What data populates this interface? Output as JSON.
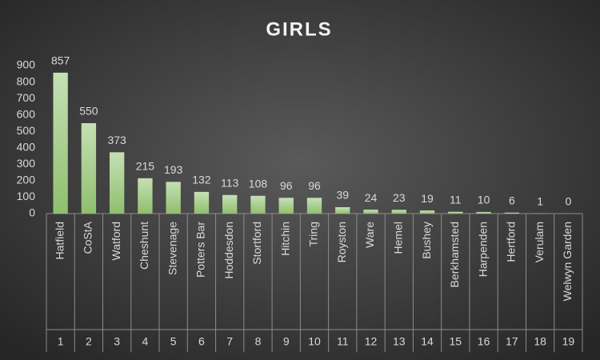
{
  "chart_data": {
    "type": "bar",
    "title": "GIRLS",
    "categories": [
      "Hatfield",
      "CoStA",
      "Watford",
      "Cheshunt",
      "Stevenage",
      "Potters Bar",
      "Hoddesdon",
      "Stortford",
      "Hitchin",
      "Tring",
      "Royston",
      "Ware",
      "Hemel",
      "Bushey",
      "Berkhamsted",
      "Harpenden",
      "Hertford",
      "Verulam",
      "Welwyn Garden"
    ],
    "category_numbers": [
      1,
      2,
      3,
      4,
      5,
      6,
      7,
      8,
      9,
      10,
      11,
      12,
      13,
      14,
      15,
      16,
      17,
      18,
      19
    ],
    "values": [
      857,
      550,
      373,
      215,
      193,
      132,
      113,
      108,
      96,
      96,
      39,
      24,
      23,
      19,
      11,
      10,
      6,
      1,
      0
    ],
    "color": "#a9d18e",
    "ylim": [
      0,
      900
    ],
    "yticks": [
      0,
      100,
      200,
      300,
      400,
      500,
      600,
      700,
      800,
      900
    ],
    "grid": false
  }
}
